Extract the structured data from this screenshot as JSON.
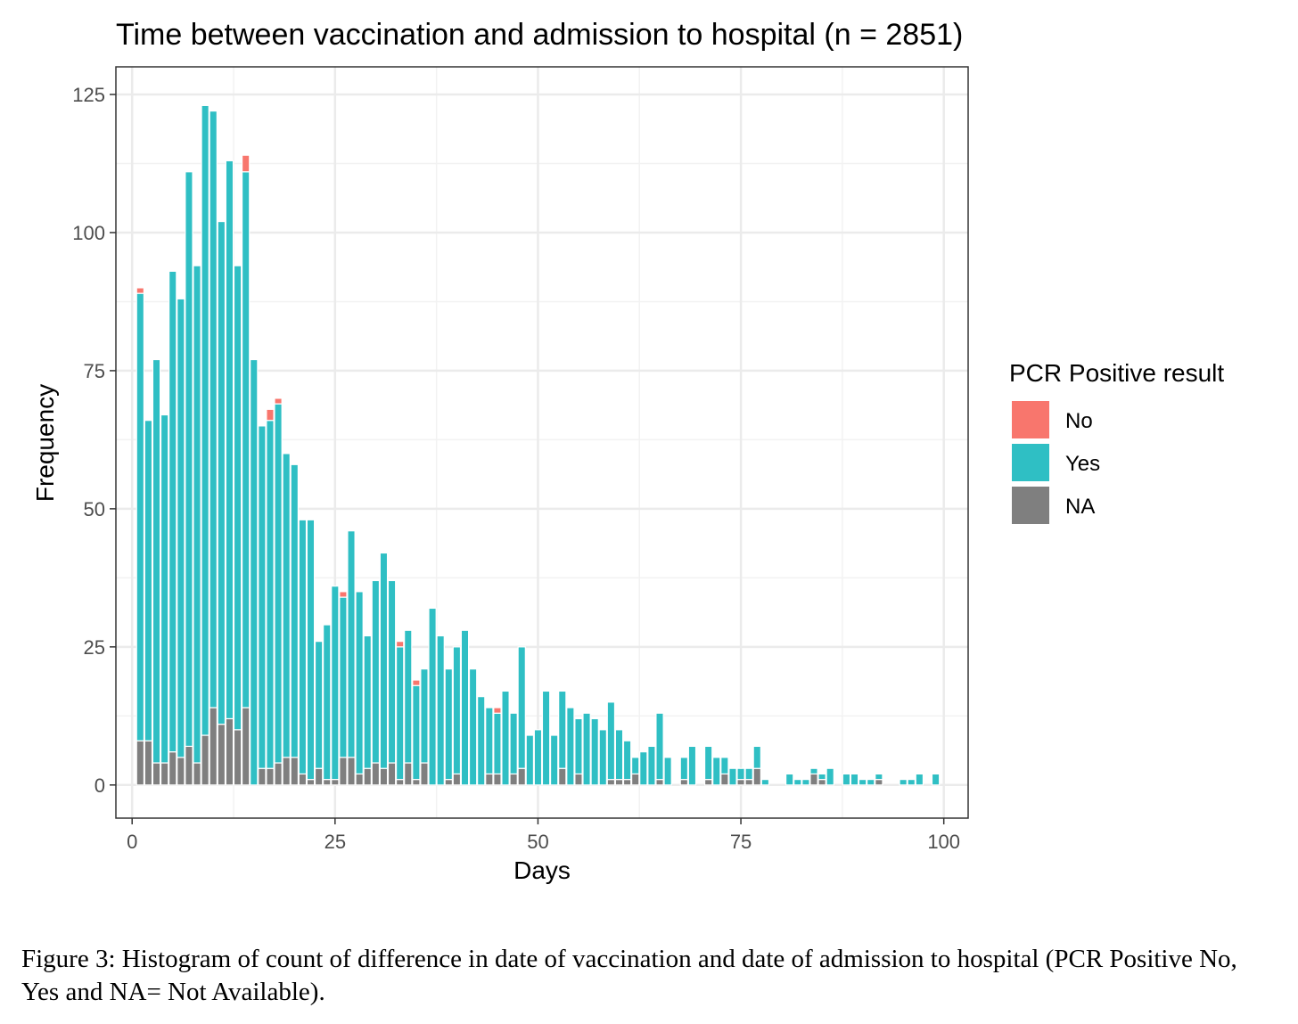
{
  "chart_data": {
    "type": "bar",
    "title": "Time between vaccination and admission to hospital (n = 2851)",
    "xlabel": "Days",
    "ylabel": "Frequency",
    "xlim": [
      -2,
      103
    ],
    "ylim": [
      -6,
      130
    ],
    "x_ticks": [
      0,
      25,
      50,
      75,
      100
    ],
    "y_ticks": [
      0,
      25,
      50,
      75,
      100,
      125
    ],
    "grid": true,
    "stacked": true,
    "legend": {
      "title": "PCR Positive result",
      "position": "right"
    },
    "x": [
      1,
      2,
      3,
      4,
      5,
      6,
      7,
      8,
      9,
      10,
      11,
      12,
      13,
      14,
      15,
      16,
      17,
      18,
      19,
      20,
      21,
      22,
      23,
      24,
      25,
      26,
      27,
      28,
      29,
      30,
      31,
      32,
      33,
      34,
      35,
      36,
      37,
      38,
      39,
      40,
      41,
      42,
      43,
      44,
      45,
      46,
      47,
      48,
      49,
      50,
      51,
      52,
      53,
      54,
      55,
      56,
      57,
      58,
      59,
      60,
      61,
      62,
      63,
      64,
      65,
      66,
      67,
      68,
      69,
      70,
      71,
      72,
      73,
      74,
      75,
      76,
      77,
      78,
      79,
      80,
      81,
      82,
      83,
      84,
      85,
      86,
      87,
      88,
      89,
      90,
      91,
      92,
      93,
      94,
      95,
      96,
      97,
      98,
      99
    ],
    "series": [
      {
        "name": "NA",
        "color": "#7f7f7f",
        "values": [
          8,
          8,
          4,
          4,
          6,
          5,
          7,
          4,
          9,
          14,
          11,
          12,
          10,
          14,
          0,
          3,
          3,
          4,
          5,
          5,
          2,
          1,
          3,
          1,
          1,
          5,
          5,
          2,
          3,
          4,
          3,
          4,
          1,
          4,
          1,
          4,
          0,
          0,
          1,
          2,
          0,
          0,
          0,
          2,
          2,
          0,
          2,
          3,
          0,
          0,
          0,
          0,
          3,
          0,
          2,
          0,
          0,
          0,
          1,
          1,
          1,
          2,
          0,
          0,
          1,
          0,
          0,
          1,
          0,
          0,
          1,
          0,
          2,
          0,
          1,
          1,
          3,
          0,
          0,
          0,
          0,
          0,
          0,
          2,
          1,
          0,
          0,
          0,
          0,
          0,
          0,
          1,
          0,
          0,
          0,
          0,
          0,
          0,
          0
        ]
      },
      {
        "name": "Yes",
        "color": "#2fbfc4",
        "values": [
          81,
          58,
          73,
          63,
          87,
          83,
          104,
          90,
          114,
          108,
          91,
          101,
          84,
          97,
          77,
          62,
          63,
          65,
          55,
          53,
          46,
          47,
          23,
          28,
          35,
          29,
          41,
          33,
          24,
          33,
          39,
          33,
          24,
          24,
          17,
          17,
          32,
          27,
          20,
          23,
          28,
          21,
          16,
          12,
          11,
          17,
          11,
          22,
          9,
          10,
          17,
          9,
          14,
          14,
          10,
          13,
          12,
          10,
          14,
          9,
          7,
          3,
          6,
          7,
          12,
          5,
          0,
          4,
          7,
          0,
          6,
          5,
          3,
          3,
          2,
          2,
          4,
          1,
          0,
          0,
          2,
          1,
          1,
          1,
          1,
          3,
          0,
          2,
          2,
          1,
          1,
          1,
          0,
          0,
          1,
          1,
          2,
          0,
          2
        ]
      },
      {
        "name": "No",
        "color": "#f8766d",
        "values": [
          1,
          0,
          0,
          0,
          0,
          0,
          0,
          0,
          0,
          0,
          0,
          0,
          0,
          3,
          0,
          0,
          2,
          1,
          0,
          0,
          0,
          0,
          0,
          0,
          0,
          1,
          0,
          0,
          0,
          0,
          0,
          0,
          1,
          0,
          1,
          0,
          0,
          0,
          0,
          0,
          0,
          0,
          0,
          0,
          1,
          0,
          0,
          0,
          0,
          0,
          0,
          0,
          0,
          0,
          0,
          0,
          0,
          0,
          0,
          0,
          0,
          0,
          0,
          0,
          0,
          0,
          0,
          0,
          0,
          0,
          0,
          0,
          0,
          0,
          0,
          0,
          0,
          0,
          0,
          0,
          0,
          0,
          0,
          0,
          0,
          0,
          0,
          0,
          0,
          0,
          0,
          0,
          0,
          0,
          0,
          0,
          0,
          0,
          0
        ]
      }
    ]
  },
  "caption": "Figure 3: Histogram of count of difference in date of vaccination and date of admission to hospital (PCR Positive No, Yes and NA= Not Available)."
}
